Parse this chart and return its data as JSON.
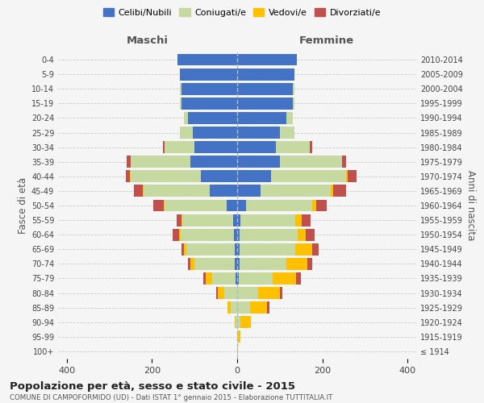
{
  "age_groups": [
    "100+",
    "95-99",
    "90-94",
    "85-89",
    "80-84",
    "75-79",
    "70-74",
    "65-69",
    "60-64",
    "55-59",
    "50-54",
    "45-49",
    "40-44",
    "35-39",
    "30-34",
    "25-29",
    "20-24",
    "15-19",
    "10-14",
    "5-9",
    "0-4"
  ],
  "birth_years": [
    "≤ 1914",
    "1915-1919",
    "1920-1924",
    "1925-1929",
    "1930-1934",
    "1935-1939",
    "1940-1944",
    "1945-1949",
    "1950-1954",
    "1955-1959",
    "1960-1964",
    "1965-1969",
    "1970-1974",
    "1975-1979",
    "1980-1984",
    "1985-1989",
    "1990-1994",
    "1995-1999",
    "2000-2004",
    "2005-2009",
    "2010-2014"
  ],
  "males": {
    "single": [
      0,
      0,
      0,
      0,
      0,
      4,
      5,
      5,
      8,
      9,
      25,
      65,
      85,
      110,
      100,
      105,
      115,
      130,
      130,
      135,
      140
    ],
    "married": [
      0,
      0,
      4,
      15,
      30,
      55,
      95,
      115,
      125,
      120,
      145,
      155,
      165,
      140,
      70,
      30,
      10,
      5,
      5,
      0,
      0
    ],
    "widowed": [
      0,
      0,
      2,
      8,
      15,
      15,
      10,
      5,
      3,
      2,
      2,
      2,
      2,
      0,
      0,
      0,
      0,
      0,
      0,
      0,
      0
    ],
    "divorced": [
      0,
      0,
      0,
      0,
      5,
      5,
      5,
      5,
      15,
      10,
      25,
      20,
      10,
      10,
      5,
      0,
      0,
      0,
      0,
      0,
      0
    ]
  },
  "females": {
    "single": [
      0,
      0,
      0,
      0,
      0,
      4,
      5,
      6,
      6,
      7,
      20,
      55,
      80,
      100,
      90,
      100,
      115,
      130,
      130,
      135,
      140
    ],
    "married": [
      0,
      2,
      8,
      30,
      50,
      80,
      110,
      130,
      135,
      130,
      155,
      165,
      175,
      145,
      80,
      35,
      15,
      5,
      5,
      0,
      0
    ],
    "widowed": [
      2,
      5,
      25,
      40,
      50,
      55,
      50,
      40,
      20,
      15,
      10,
      5,
      5,
      0,
      0,
      0,
      0,
      0,
      0,
      0,
      0
    ],
    "divorced": [
      0,
      0,
      0,
      5,
      5,
      10,
      10,
      15,
      20,
      20,
      25,
      30,
      20,
      10,
      5,
      0,
      0,
      0,
      0,
      0,
      0
    ]
  },
  "colors": {
    "single": "#4472c4",
    "married": "#c5d9a0",
    "widowed": "#ffc000",
    "divorced": "#c0504d"
  },
  "legend_labels": [
    "Celibi/Nubili",
    "Coniugati/e",
    "Vedovi/e",
    "Divorziati/e"
  ],
  "title": "Popolazione per età, sesso e stato civile - 2015",
  "subtitle": "COMUNE DI CAMPOFORMIDO (UD) - Dati ISTAT 1° gennaio 2015 - Elaborazione TUTTITALIA.IT",
  "xlabel_left": "Maschi",
  "xlabel_right": "Femmine",
  "ylabel_left": "Fasce di età",
  "ylabel_right": "Anni di nascita",
  "xlim": 420,
  "bg_color": "#f5f5f5",
  "grid_color": "#cccccc"
}
